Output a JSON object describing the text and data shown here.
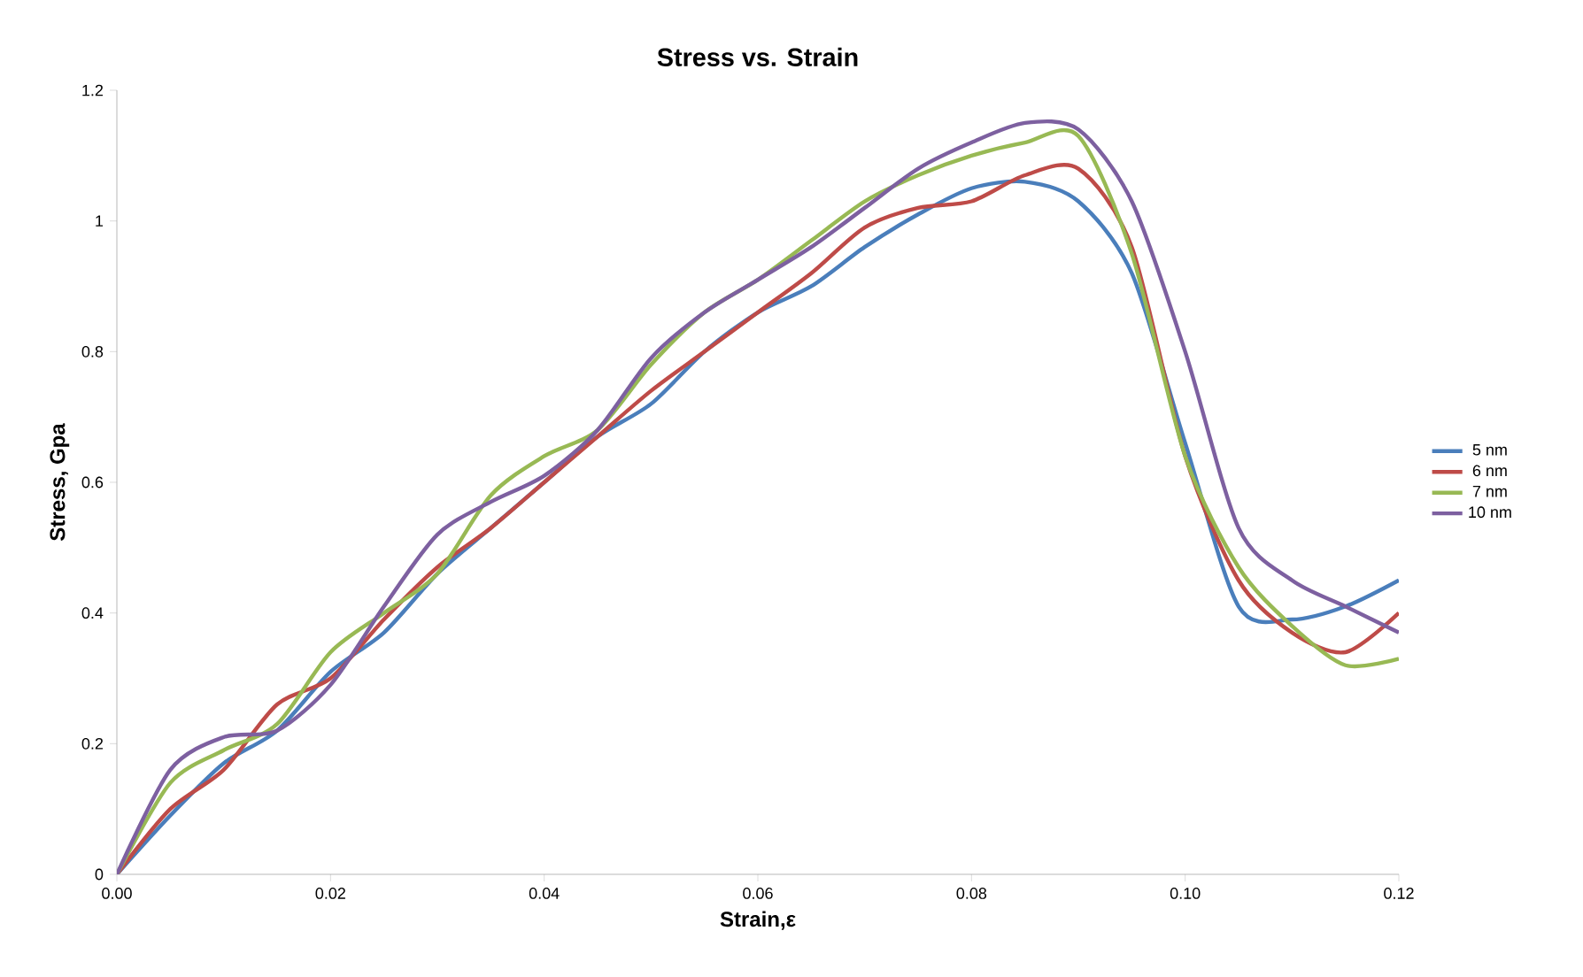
{
  "chart_data": {
    "type": "line",
    "title": "Stress vs. Strain",
    "xlabel": "Strain,ε",
    "ylabel": "Stress, Gpa",
    "x": [
      0,
      0.005,
      0.01,
      0.015,
      0.02,
      0.025,
      0.03,
      0.035,
      0.04,
      0.045,
      0.05,
      0.055,
      0.06,
      0.065,
      0.07,
      0.075,
      0.08,
      0.085,
      0.09,
      0.095,
      0.1,
      0.105,
      0.11,
      0.115,
      0.12
    ],
    "series": [
      {
        "name": "5 nm",
        "color": "#4a7ebb",
        "values": [
          0,
          0.09,
          0.17,
          0.22,
          0.31,
          0.37,
          0.46,
          0.53,
          0.6,
          0.67,
          0.72,
          0.8,
          0.86,
          0.9,
          0.96,
          1.01,
          1.05,
          1.06,
          1.03,
          0.92,
          0.66,
          0.41,
          0.39,
          0.41,
          0.45
        ]
      },
      {
        "name": "6 nm",
        "color": "#be4b48",
        "values": [
          0,
          0.1,
          0.16,
          0.26,
          0.3,
          0.39,
          0.47,
          0.53,
          0.6,
          0.67,
          0.74,
          0.8,
          0.86,
          0.92,
          0.99,
          1.02,
          1.03,
          1.07,
          1.08,
          0.96,
          0.64,
          0.45,
          0.37,
          0.34,
          0.4
        ]
      },
      {
        "name": "7 nm",
        "color": "#98b954",
        "values": [
          0,
          0.14,
          0.19,
          0.23,
          0.34,
          0.4,
          0.46,
          0.58,
          0.64,
          0.68,
          0.78,
          0.86,
          0.91,
          0.97,
          1.03,
          1.07,
          1.1,
          1.12,
          1.13,
          0.95,
          0.64,
          0.47,
          0.38,
          0.32,
          0.33
        ]
      },
      {
        "name": "10 nm",
        "color": "#7d60a0",
        "values": [
          0,
          0.16,
          0.21,
          0.22,
          0.29,
          0.41,
          0.52,
          0.57,
          0.61,
          0.68,
          0.79,
          0.86,
          0.91,
          0.96,
          1.02,
          1.08,
          1.12,
          1.15,
          1.14,
          1.03,
          0.8,
          0.53,
          0.45,
          0.41,
          0.37
        ]
      }
    ],
    "xlim": [
      0,
      0.12
    ],
    "ylim": [
      0,
      1.2
    ],
    "xticks": [
      {
        "value": 0,
        "label": "0.00"
      },
      {
        "value": 0.02,
        "label": "0.02"
      },
      {
        "value": 0.04,
        "label": "0.04"
      },
      {
        "value": 0.06,
        "label": "0.06"
      },
      {
        "value": 0.08,
        "label": "0.08"
      },
      {
        "value": 0.1,
        "label": "0.10"
      },
      {
        "value": 0.12,
        "label": "0.12"
      }
    ],
    "yticks": [
      0,
      0.2,
      0.4,
      0.6,
      0.8,
      1,
      1.2
    ],
    "grid": false,
    "legend": "right",
    "marker": "none",
    "line_style": "solid"
  }
}
